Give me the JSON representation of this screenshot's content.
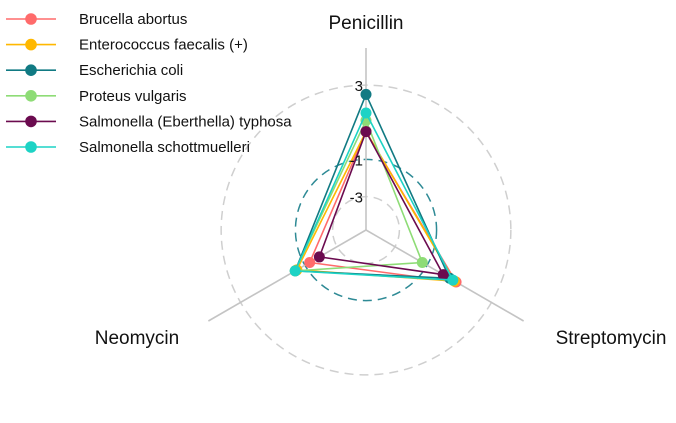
{
  "chart_data": {
    "type": "radar",
    "title": "",
    "axes": [
      "Penicillin",
      "Streptomycin",
      "Neomycin"
    ],
    "tick_labels": [
      "3",
      "-1",
      "-3"
    ],
    "ticks": [
      3,
      -1,
      -3
    ],
    "rlim": [
      -4.8,
      5
    ],
    "grid": true,
    "legend_position": "top-left",
    "series": [
      {
        "name": "Brucella abortus",
        "color": "#FF6B6B",
        "values": [
          0.5,
          0.8,
          -1.3
        ]
      },
      {
        "name": "Enterococcus faecalis (+)",
        "color": "#FFB800",
        "values": [
          0.5,
          0.7,
          -0.5
        ]
      },
      {
        "name": "Escherichia coli",
        "color": "#117A83",
        "values": [
          2.5,
          0.4,
          -0.4
        ]
      },
      {
        "name": "Proteus vulgaris",
        "color": "#8EDC76",
        "values": [
          1.1,
          -1.3,
          -0.4
        ]
      },
      {
        "name": "Salmonella (Eberthella) typhosa",
        "color": "#6B0B4F",
        "values": [
          0.5,
          0.0,
          -1.9
        ]
      },
      {
        "name": "Salmonella schottmuelleri",
        "color": "#1DD3C5",
        "values": [
          1.5,
          0.6,
          -0.4
        ]
      }
    ]
  }
}
